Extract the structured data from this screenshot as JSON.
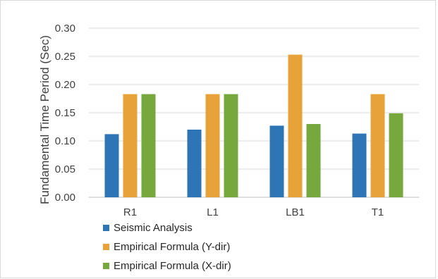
{
  "chart_data": {
    "type": "bar",
    "title": "",
    "xlabel": "",
    "ylabel": "Fundamental Time Period (Sec)",
    "ylim": [
      0,
      0.3
    ],
    "yticks": [
      "0.00",
      "0.05",
      "0.10",
      "0.15",
      "0.20",
      "0.25",
      "0.30"
    ],
    "grid": true,
    "legend_position": "bottom-left",
    "categories": [
      "R1",
      "L1",
      "LB1",
      "T1"
    ],
    "series": [
      {
        "name": "Seismic Analysis",
        "color": "#2e75b6",
        "values": [
          0.112,
          0.12,
          0.127,
          0.113
        ]
      },
      {
        "name": "Empirical Formula (Y-dir)",
        "color": "#e7a23a",
        "values": [
          0.183,
          0.183,
          0.253,
          0.183
        ]
      },
      {
        "name": "Empirical Formula (X-dir)",
        "color": "#77a83e",
        "values": [
          0.183,
          0.183,
          0.13,
          0.149
        ]
      }
    ]
  }
}
